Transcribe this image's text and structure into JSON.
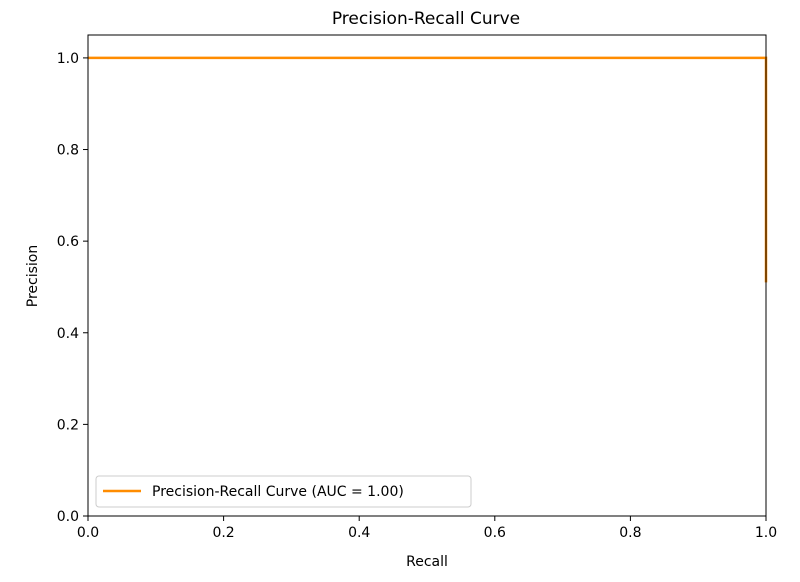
{
  "chart_data": {
    "type": "line",
    "title": "Precision-Recall Curve",
    "xlabel": "Recall",
    "ylabel": "Precision",
    "xlim": [
      0.0,
      1.0
    ],
    "ylim": [
      0.0,
      1.05
    ],
    "xticks": [
      0.0,
      0.2,
      0.4,
      0.6,
      0.8,
      1.0
    ],
    "xtick_labels": [
      "0.0",
      "0.2",
      "0.4",
      "0.6",
      "0.8",
      "1.0"
    ],
    "yticks": [
      0.0,
      0.2,
      0.4,
      0.6,
      0.8,
      1.0
    ],
    "ytick_labels": [
      "0.0",
      "0.2",
      "0.4",
      "0.6",
      "0.8",
      "1.0"
    ],
    "grid": false,
    "legend_position": "lower-left",
    "series": [
      {
        "name": "Precision-Recall Curve (AUC = 1.00)",
        "color": "#ff8c00",
        "x": [
          0.0,
          1.0,
          1.0
        ],
        "y": [
          1.0,
          1.0,
          0.51
        ]
      }
    ]
  }
}
